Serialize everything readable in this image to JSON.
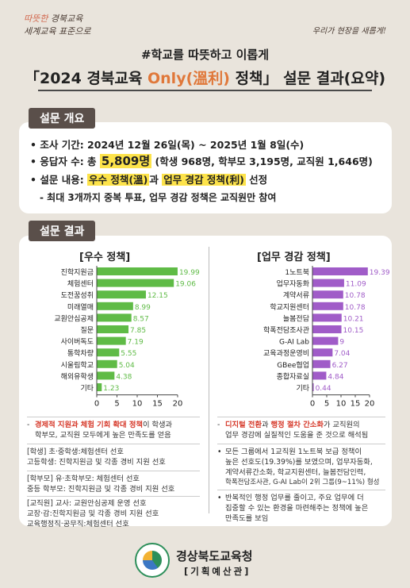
{
  "header": {
    "slogan_left_1a": "따뜻한",
    "slogan_left_1b": "경북교육",
    "slogan_left_2": "세계교육 표준으로",
    "slogan_right": "우리가 현장을 새롭게!",
    "headline": "#학교를 따뜻하고 이롭게",
    "title_pre": "「2024 경북교육 ",
    "title_hl": "Only(溫利)",
    "title_post": " 정책」 설문 결과(요약)"
  },
  "overview": {
    "tab": "설문 개요",
    "period": "• 조사 기간: 2024년 12월 26일(목) ~ 2025년 1월 8일(수)",
    "resp_pre": "• 응답자 수: 총 ",
    "resp_big": "5,809명",
    "resp_post": " (학생 968명, 학부모 3,195명, 교직원 1,646명)",
    "content_pre": "• 설문 내용: ",
    "content_hl1": "우수 정책(溫)",
    "content_mid": "과 ",
    "content_hl2": "업무 경감 정책(利)",
    "content_post": " 선정",
    "sub": "- 최대 3개까지 중복 투표, 업무 경감 정책은 교직원만 참여"
  },
  "results": {
    "tab": "설문 결과"
  },
  "chart_data": [
    {
      "type": "bar",
      "title": "[우수 정책]",
      "color": "#5fbb46",
      "categories": [
        "진학지원금",
        "체험센터",
        "도전꿈성취",
        "미래열매",
        "교원안심공제",
        "질문",
        "사이버독도",
        "통학차량",
        "시울림학교",
        "해외유학생",
        "기타"
      ],
      "values": [
        19.99,
        19.06,
        12.15,
        8.99,
        8.57,
        7.85,
        7.19,
        5.55,
        5.04,
        4.38,
        1.23
      ],
      "value_labels": [
        "19.99",
        "19.06",
        "12.15",
        "8.99",
        "8.57",
        "7.85",
        "7.19",
        "5.55",
        "5.04",
        "4.38",
        "1.23"
      ],
      "xlim": [
        0,
        20
      ],
      "xticks": [
        "0",
        "5",
        "10",
        "15",
        "20"
      ]
    },
    {
      "type": "bar",
      "title": "[업무 경감 정책]",
      "color": "#a05cc8",
      "categories": [
        "1노트북",
        "업무자동화",
        "계약서류",
        "학교지원센터",
        "늘봄전담",
        "학폭전담조사관",
        "G-AI Lab",
        "교육과정운영비",
        "GBee협업",
        "종합자료실",
        "기타"
      ],
      "values": [
        19.39,
        11.09,
        10.78,
        10.78,
        10.21,
        10.15,
        9,
        7.04,
        6.27,
        4.84,
        0.44
      ],
      "value_labels": [
        "19.39",
        "11.09",
        "10.78",
        "10.78",
        "10.21",
        "10.15",
        "9",
        "7.04",
        "6.27",
        "4.84",
        "0.44"
      ],
      "xlim": [
        0,
        20
      ],
      "xticks": [
        "0",
        "5",
        "10",
        "15",
        "20"
      ]
    }
  ],
  "notes_left": {
    "n1_red1": "경제적 지원과 체험 기회 확대 정책",
    "n1_rest1": "이 학생과",
    "n1_line2": "학부모, 교직원 모두에게 높은 만족도를 얻음",
    "n2_l1": "[학생] 초·중학생:체험센터 선호",
    "n2_l2": "고등학생: 진학지원금 및 각종 경비 지원 선호",
    "n3_l1": "[학부모] 유·초학부모: 체험센터 선호",
    "n3_l2": "중등 학부모: 진학지원금 및 각종 경비 지원 선호",
    "n4_l1": "[교직원] 교사: 교원안심공제 운영 선호",
    "n4_l2": "교장·감:진학지원금 및 각종 경비 지원 선호",
    "n4_l3": "교육행정직·공무직:체험센터 선호"
  },
  "notes_right": {
    "n1_red1": "디지털 전환",
    "n1_mid": "과 ",
    "n1_red2": "행정 절차 간소화",
    "n1_rest": "가 교직원의",
    "n1_line2": "업무 경감에 실질적인 도움을 준 것으로 해석됨",
    "n2_l1": "모든 그룹에서 1교직원 1노트북 보급 정책이",
    "n2_l2": "높은 선호도(19.39%)를 보였으며, 업무자동화,",
    "n2_l3": "계약서류간소화, 학교지원센터, 늘봄전담인력,",
    "n2_l4": "학폭전담조사관, G-AI Lab이 2위 그룹(9~11%) 형성",
    "n3_l1": "반복적인 행정 업무를 줄이고, 주요 업무에 더",
    "n3_l2": "집중할 수 있는 환경을 마련해주는 정책에 높은",
    "n3_l3": "만족도를 보임"
  },
  "footer": {
    "org": "경상북도교육청",
    "dept": "[기획예산관]"
  }
}
